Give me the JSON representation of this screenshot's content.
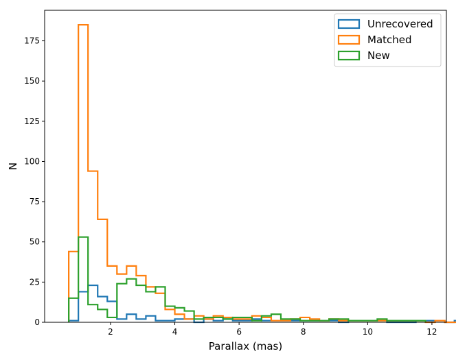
{
  "chart_data": {
    "type": "histogram",
    "xlabel": "Parallax (mas)",
    "ylabel": "N",
    "xlim": [
      -0.05,
      12.45
    ],
    "ylim": [
      0,
      194
    ],
    "x_ticks": [
      2,
      4,
      6,
      8,
      10,
      12
    ],
    "y_ticks": [
      0,
      25,
      50,
      75,
      100,
      125,
      150,
      175
    ],
    "legend_position": "top-right",
    "bin_width": 0.3,
    "series": [
      {
        "name": "Unrecovered",
        "color": "#1f77b4",
        "bin_start": 0.7,
        "counts": [
          1,
          19,
          23,
          16,
          13,
          2,
          5,
          2,
          4,
          1,
          1,
          2,
          2,
          0,
          2,
          1,
          2,
          1,
          1,
          2,
          1,
          1,
          1,
          1,
          1,
          1,
          1,
          1,
          0,
          1,
          1,
          1,
          1,
          0,
          0,
          0,
          1,
          1,
          1,
          0,
          1,
          0,
          1
        ]
      },
      {
        "name": "Matched",
        "color": "#ff7f0e",
        "bin_start": 0.7,
        "counts": [
          44,
          185,
          94,
          64,
          35,
          30,
          35,
          29,
          22,
          18,
          8,
          5,
          2,
          4,
          2,
          4,
          3,
          2,
          2,
          4,
          3,
          1,
          1,
          2,
          3,
          2,
          1,
          2,
          1,
          1,
          1,
          1,
          1,
          1,
          1,
          1,
          1,
          0,
          1,
          0,
          0,
          0,
          0,
          1,
          0,
          0,
          0,
          0,
          0,
          0,
          0,
          0,
          0,
          0,
          0,
          0,
          0,
          0,
          0,
          0,
          0,
          0,
          0,
          0,
          0,
          0,
          0,
          0,
          0,
          0,
          0,
          0,
          0,
          0,
          0,
          0,
          0,
          0,
          0,
          0,
          0,
          0,
          0,
          0,
          0,
          0,
          0,
          0,
          0,
          0,
          0,
          0,
          0,
          1,
          0,
          0,
          0,
          0,
          0,
          0,
          0,
          0,
          0,
          1
        ]
      },
      {
        "name": "New",
        "color": "#2ca02c",
        "bin_start": 0.7,
        "counts": [
          15,
          53,
          11,
          8,
          3,
          24,
          27,
          23,
          19,
          22,
          10,
          9,
          7,
          2,
          3,
          3,
          2,
          3,
          3,
          1,
          4,
          5,
          2,
          2,
          1,
          1,
          1,
          2,
          2,
          1,
          1,
          1,
          2,
          1,
          1,
          1,
          1
        ]
      }
    ]
  }
}
